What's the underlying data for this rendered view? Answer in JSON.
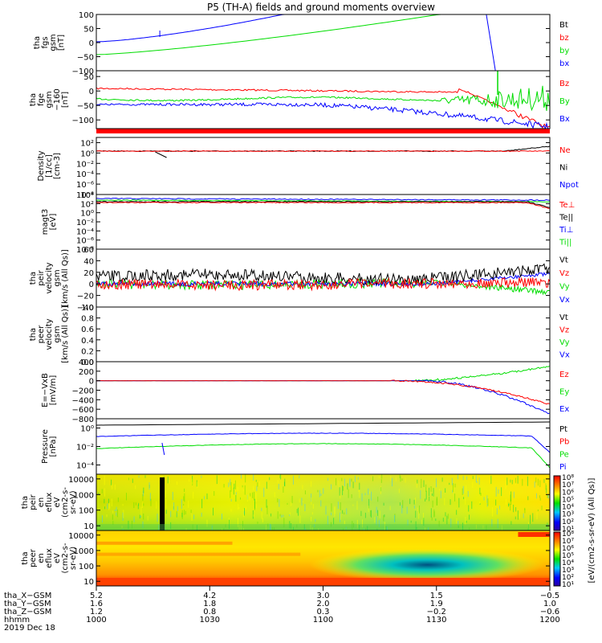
{
  "title": "P5 (TH-A) fields and ground moments overview",
  "colors": {
    "black": "#000000",
    "red": "#ff0000",
    "green": "#00dd00",
    "blue": "#0000ff"
  },
  "chart_data": {
    "type": "line",
    "panels": [
      {
        "ylabel_lines": [
          "tha",
          "fgs",
          "gsm",
          "[nT]"
        ],
        "ylim": [
          -100,
          100
        ],
        "yticks": [
          "100",
          "50",
          "0",
          "−50",
          "−100"
        ],
        "legend": [
          {
            "label": "Bt",
            "color": "#000000"
          },
          {
            "label": "bz",
            "color": "#ff0000"
          },
          {
            "label": "by",
            "color": "#00dd00"
          },
          {
            "label": "bx",
            "color": "#0000ff"
          }
        ]
      },
      {
        "ylabel_lines": [
          "tha",
          "fge",
          "gsm",
          "−160",
          "[nT]"
        ],
        "ylim": [
          -130,
          70
        ],
        "yticks": [
          "50",
          "0",
          "−50",
          "−100"
        ],
        "legend": [
          {
            "label": "Bz",
            "color": "#ff0000"
          },
          {
            "label": "By",
            "color": "#00dd00"
          },
          {
            "label": "Bx",
            "color": "#0000ff"
          }
        ]
      },
      {
        "ylabel_lines": [
          "Density",
          "[1/cc]",
          "[cm-3]"
        ],
        "scale": "log",
        "ylim": [
          1e-08,
          1000.0
        ],
        "yticks": [
          "10²",
          "10⁰",
          "10⁻²",
          "10⁻⁴",
          "10⁻⁶",
          "10⁻⁸"
        ],
        "legend": [
          {
            "label": "Ne",
            "color": "#ff0000"
          },
          {
            "label": "Ni",
            "color": "#000000"
          },
          {
            "label": "Npot",
            "color": "#0000ff"
          }
        ]
      },
      {
        "ylabel_lines": [
          "magt3",
          "[eV]"
        ],
        "scale": "log",
        "ylim": [
          1e-08,
          10000.0
        ],
        "yticks": [
          "10⁴",
          "10²",
          "10⁰",
          "10⁻²",
          "10⁻⁴",
          "10⁻⁶",
          "10⁻⁸"
        ],
        "legend": [
          {
            "label": "Te⊥",
            "color": "#ff0000"
          },
          {
            "label": "Te||",
            "color": "#000000"
          },
          {
            "label": "Ti⊥",
            "color": "#0000ff"
          },
          {
            "label": "Ti||",
            "color": "#00dd00"
          }
        ]
      },
      {
        "ylabel_lines": [
          "tha",
          "peir",
          "velocity",
          "gsm",
          "[km/s (All Qs)]"
        ],
        "ylim": [
          -40,
          60
        ],
        "yticks": [
          "60",
          "40",
          "20",
          "0",
          "−20",
          "−40"
        ],
        "legend": [
          {
            "label": "Vt",
            "color": "#000000"
          },
          {
            "label": "Vz",
            "color": "#ff0000"
          },
          {
            "label": "Vy",
            "color": "#00dd00"
          },
          {
            "label": "Vx",
            "color": "#0000ff"
          }
        ]
      },
      {
        "ylabel_lines": [
          "tha",
          "peer",
          "velocity",
          "gsm",
          "[km/s (All Qs)]"
        ],
        "ylim": [
          0,
          1
        ],
        "yticks": [
          "1.0",
          "0.8",
          "0.6",
          "0.4",
          "0.2",
          "0.0"
        ],
        "legend": [
          {
            "label": "Vt",
            "color": "#000000"
          },
          {
            "label": "Vz",
            "color": "#ff0000"
          },
          {
            "label": "Vy",
            "color": "#00dd00"
          },
          {
            "label": "Vx",
            "color": "#0000ff"
          }
        ]
      },
      {
        "ylabel_lines": [
          "E=−VxB",
          "[mV/m]"
        ],
        "ylim": [
          -800,
          400
        ],
        "yticks": [
          "400",
          "200",
          "0",
          "−200",
          "−400",
          "−600",
          "−800"
        ],
        "legend": [
          {
            "label": "Ez",
            "color": "#ff0000"
          },
          {
            "label": "Ey",
            "color": "#00dd00"
          },
          {
            "label": "Ex",
            "color": "#0000ff"
          }
        ]
      },
      {
        "ylabel_lines": [
          "Pressure",
          "[nPa]"
        ],
        "scale": "log",
        "ylim": [
          1e-05,
          10.0
        ],
        "yticks": [
          "10⁰",
          "10⁻²",
          "10⁻⁴"
        ],
        "legend": [
          {
            "label": "Pt",
            "color": "#000000"
          },
          {
            "label": "Pb",
            "color": "#ff0000"
          },
          {
            "label": "Pe",
            "color": "#00dd00"
          },
          {
            "label": "Pi",
            "color": "#0000ff"
          }
        ]
      },
      {
        "type": "heatmap",
        "ylabel_lines": [
          "tha",
          "peir",
          "en",
          "eflux",
          "eV",
          "(cm2-s-",
          "sr-eV)"
        ],
        "scale": "log",
        "ylim": [
          5,
          20000
        ],
        "yticks": [
          "10000",
          "1000",
          "100",
          "10"
        ],
        "legend": []
      },
      {
        "type": "heatmap",
        "ylabel_lines": [
          "tha",
          "peer",
          "en",
          "eflux",
          "eV",
          "(cm2-s-",
          "sr-eV)"
        ],
        "scale": "log",
        "ylim": [
          5,
          20000
        ],
        "yticks": [
          "10000",
          "1000",
          "100",
          "10"
        ],
        "legend": []
      }
    ],
    "colorbar": {
      "label": "[eV/(cm2-s-sr-eV) (All Qs)]",
      "upper_ticks": [
        "10⁸",
        "10⁷",
        "10⁶",
        "10⁵",
        "10⁴",
        "10³",
        "10²",
        "10¹"
      ],
      "lower_ticks": [
        "10⁸",
        "10⁷",
        "10⁶",
        "10⁵",
        "10⁴",
        "10³",
        "10²",
        "10¹"
      ]
    },
    "xaxis_rows": [
      {
        "label": "tha_X−GSM",
        "values": [
          "5.2",
          "4.2",
          "3.0",
          "1.5",
          "−0.5"
        ]
      },
      {
        "label": "tha_Y−GSM",
        "values": [
          "1.6",
          "1.8",
          "2.0",
          "1.9",
          "1.0"
        ]
      },
      {
        "label": "tha_Z−GSM",
        "values": [
          "1.2",
          "0.8",
          "0.3",
          "−0.2",
          "−0.6"
        ]
      },
      {
        "label": "hhmm",
        "values": [
          "1000",
          "1030",
          "1100",
          "1130",
          "1200"
        ]
      }
    ],
    "date_label": "2019 Dec 18",
    "x_tick_fractions": [
      0,
      0.25,
      0.5,
      0.75,
      1.0
    ]
  }
}
